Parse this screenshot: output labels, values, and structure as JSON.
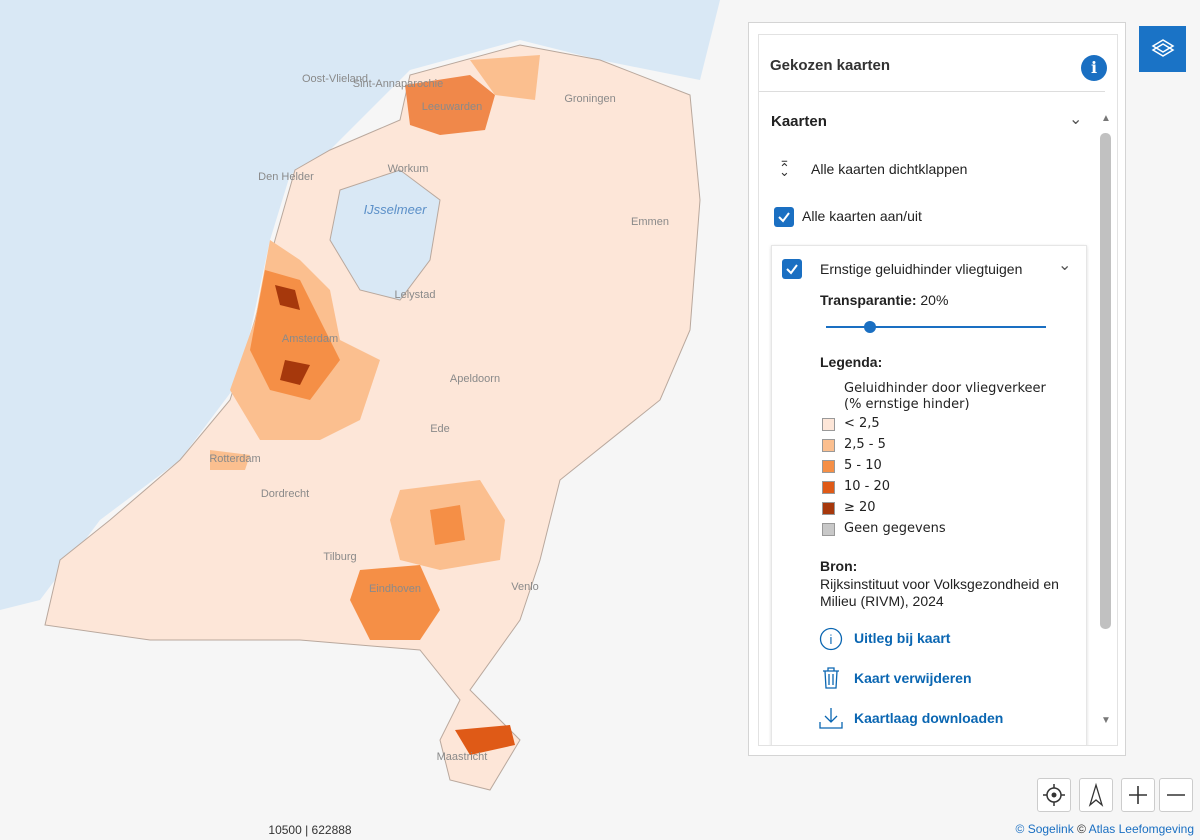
{
  "map": {
    "labels": [
      "Oost-Vlieland",
      "Sint-Annaparochie",
      "Leeuwarden",
      "Groningen",
      "Den Helder",
      "Workum",
      "IJsselmeer",
      "Lelystad",
      "Amsterdam",
      "Apeldoorn",
      "Emmen",
      "Rotterdam",
      "Eindhoven",
      "Maastricht",
      "Ede",
      "Dordrecht",
      "Tilburg",
      "Venlo"
    ],
    "coordinates": "10500 | 622888"
  },
  "panel": {
    "title": "Gekozen kaarten",
    "section": "Kaarten",
    "collapse_all": "Alle kaarten dichtklappen",
    "toggle_all": "Alle kaarten aan/uit",
    "layer": {
      "name": "Ernstige geluidhinder vliegtuigen",
      "transparency_label": "Transparantie:",
      "transparency": {
        "value": 20,
        "label": "20%"
      },
      "legend_heading": "Legenda:",
      "legend_title": [
        "Geluidhinder door vliegverkeer",
        "(% ernstige hinder)"
      ],
      "legend_items": [
        {
          "label": "< 2,5",
          "color": "#fde6d8"
        },
        {
          "label": "2,5 - 5",
          "color": "#fbbf8f"
        },
        {
          "label": "5 - 10",
          "color": "#f58f46"
        },
        {
          "label": "10 - 20",
          "color": "#df5a17"
        },
        {
          "label": "≥ 20",
          "color": "#a6380c"
        },
        {
          "label": "Geen gegevens",
          "color": "#c8c8c8"
        }
      ],
      "source_heading": "Bron:",
      "source": "Rijksinstituut voor Volksgezondheid en Milieu (RIVM), 2024",
      "actions": [
        "Uitleg bij kaart",
        "Kaart verwijderen",
        "Kaartlaag downloaden"
      ]
    }
  },
  "attribution": {
    "sogelink": "© Sogelink",
    "separator": "©",
    "atlas": "Atlas Leefomgeving"
  }
}
